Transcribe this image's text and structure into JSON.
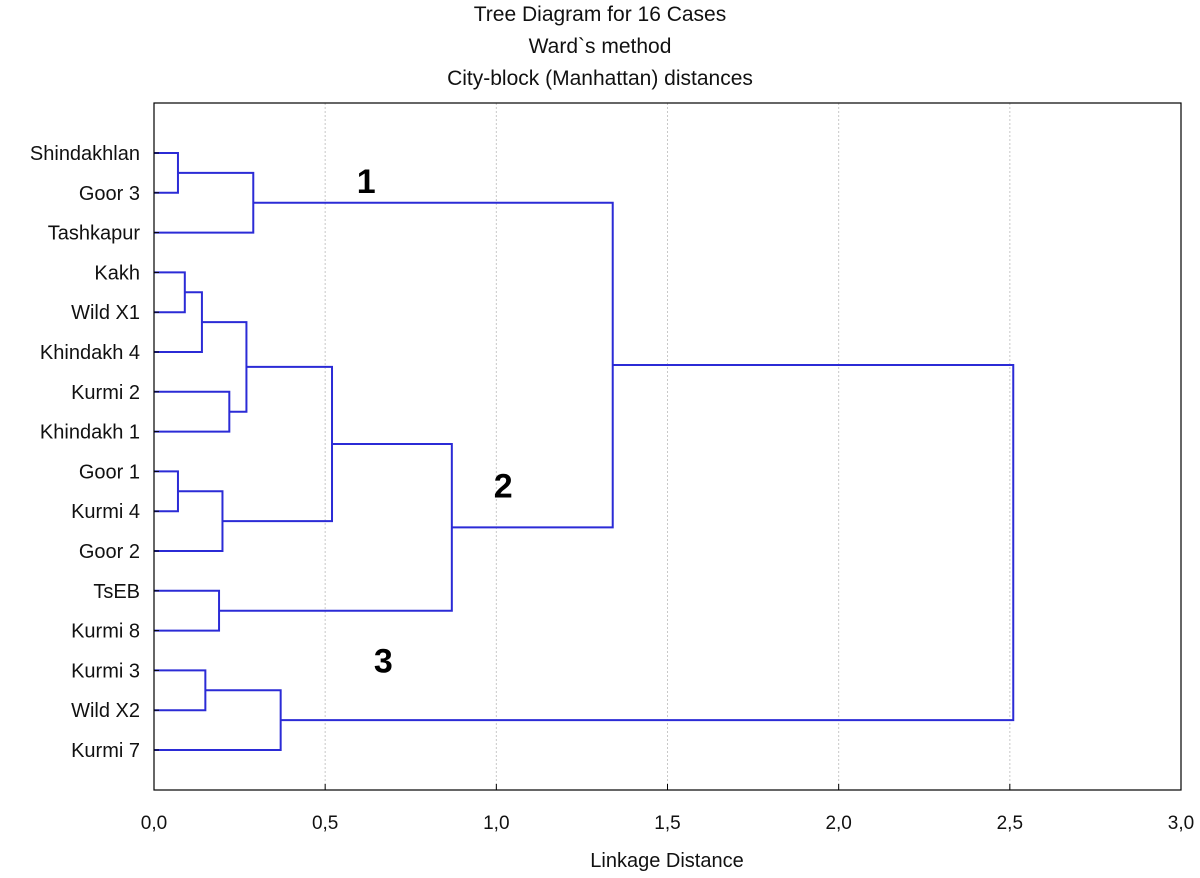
{
  "chart_data": {
    "type": "dendrogram",
    "title": [
      "Tree Diagram for 16 Cases",
      "Ward`s method",
      "City-block (Manhattan) distances"
    ],
    "xlabel": "Linkage Distance",
    "xlim": [
      0,
      3
    ],
    "xticks": [
      0,
      0.5,
      1.0,
      1.5,
      2.0,
      2.5,
      3.0
    ],
    "xtick_labels": [
      "0,0",
      "0,5",
      "1,0",
      "1,5",
      "2,0",
      "2,5",
      "3,0"
    ],
    "grid": true,
    "line_color": "#2b2bd6",
    "leaves": [
      "Shindakhlan",
      "Goor 3",
      "Tashkapur",
      "Kakh",
      "Wild X1",
      "Khindakh 4",
      "Kurmi 2",
      "Khindakh 1",
      "Goor 1",
      "Kurmi 4",
      "Goor 2",
      "TsEB",
      "Kurmi 8",
      "Kurmi 3",
      "Wild X2",
      "Kurmi 7"
    ],
    "merges": [
      {
        "id": "A",
        "children": [
          "Shindakhlan",
          "Goor 3"
        ],
        "height": 0.07
      },
      {
        "id": "B",
        "children": [
          "A",
          "Tashkapur"
        ],
        "height": 0.29
      },
      {
        "id": "C",
        "children": [
          "Kakh",
          "Wild X1"
        ],
        "height": 0.09
      },
      {
        "id": "D",
        "children": [
          "C",
          "Khindakh 4"
        ],
        "height": 0.14
      },
      {
        "id": "E",
        "children": [
          "Kurmi 2",
          "Khindakh 1"
        ],
        "height": 0.22
      },
      {
        "id": "F",
        "children": [
          "D",
          "E"
        ],
        "height": 0.27
      },
      {
        "id": "G",
        "children": [
          "Goor 1",
          "Kurmi 4"
        ],
        "height": 0.07
      },
      {
        "id": "H",
        "children": [
          "G",
          "Goor 2"
        ],
        "height": 0.2
      },
      {
        "id": "I",
        "children": [
          "F",
          "H"
        ],
        "height": 0.52
      },
      {
        "id": "J",
        "children": [
          "TsEB",
          "Kurmi 8"
        ],
        "height": 0.19
      },
      {
        "id": "K",
        "children": [
          "I",
          "J"
        ],
        "height": 0.87
      },
      {
        "id": "L",
        "children": [
          "B",
          "K"
        ],
        "height": 1.34
      },
      {
        "id": "M",
        "children": [
          "Kurmi 3",
          "Wild X2"
        ],
        "height": 0.15
      },
      {
        "id": "N",
        "children": [
          "M",
          "Kurmi 7"
        ],
        "height": 0.37
      },
      {
        "id": "O",
        "children": [
          "L",
          "N"
        ],
        "height": 2.51
      }
    ],
    "annotations": [
      {
        "text": "1",
        "x": 0.62,
        "leaf_pos": 0.7
      },
      {
        "text": "2",
        "x": 1.02,
        "leaf_pos": 8.35
      },
      {
        "text": "3",
        "x": 0.67,
        "leaf_pos": 12.75
      }
    ]
  }
}
